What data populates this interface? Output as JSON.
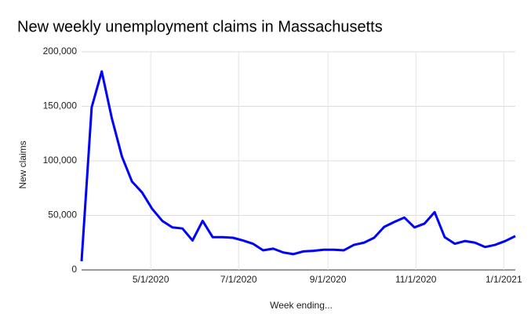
{
  "chart_data": {
    "type": "line",
    "title": "New weekly unemployment claims in Massachusetts",
    "xlabel": "Week ending...",
    "ylabel": "New claims",
    "x": [
      "3/14/2020",
      "3/21/2020",
      "3/28/2020",
      "4/4/2020",
      "4/11/2020",
      "4/18/2020",
      "4/25/2020",
      "5/2/2020",
      "5/9/2020",
      "5/16/2020",
      "5/23/2020",
      "5/30/2020",
      "6/6/2020",
      "6/13/2020",
      "6/20/2020",
      "6/27/2020",
      "7/4/2020",
      "7/11/2020",
      "7/18/2020",
      "7/25/2020",
      "8/1/2020",
      "8/8/2020",
      "8/15/2020",
      "8/22/2020",
      "8/29/2020",
      "9/5/2020",
      "9/12/2020",
      "9/19/2020",
      "9/26/2020",
      "10/3/2020",
      "10/10/2020",
      "10/17/2020",
      "10/24/2020",
      "10/31/2020",
      "11/7/2020",
      "11/14/2020",
      "11/21/2020",
      "11/28/2020",
      "12/5/2020",
      "12/12/2020",
      "12/19/2020",
      "12/26/2020",
      "1/2/2021",
      "1/9/2021"
    ],
    "series": [
      {
        "name": "New claims",
        "color": "#0000ff",
        "values": [
          8000,
          149000,
          182000,
          139000,
          104000,
          81000,
          71000,
          56000,
          45000,
          39000,
          38000,
          27000,
          45000,
          30000,
          30000,
          29500,
          27000,
          24000,
          18000,
          19500,
          16000,
          14500,
          17000,
          17500,
          18500,
          18500,
          18000,
          23000,
          25000,
          29500,
          39500,
          44000,
          48000,
          39000,
          42500,
          53000,
          30000,
          24000,
          26500,
          25000,
          21000,
          23000,
          26500,
          31000
        ]
      }
    ],
    "xlim": [
      "3/14/2020",
      "1/9/2021"
    ],
    "xticks": [
      "5/1/2020",
      "7/1/2020",
      "9/1/2020",
      "11/1/2020",
      "1/1/2021"
    ],
    "ylim": [
      0,
      200000
    ],
    "yticks": [
      0,
      {
        "value": 50000,
        "label": "50,000"
      },
      {
        "value": 100000,
        "label": "100,000"
      },
      {
        "value": 150000,
        "label": "150,000"
      },
      {
        "value": 200000,
        "label": "200,000"
      }
    ],
    "grid": true
  }
}
